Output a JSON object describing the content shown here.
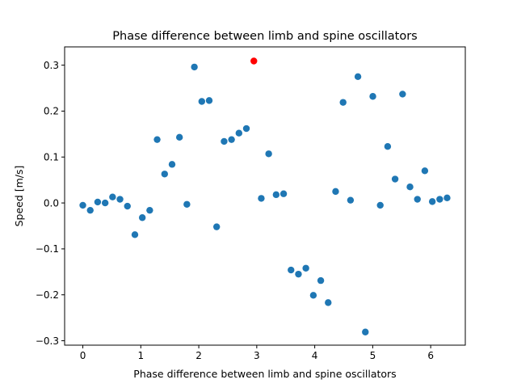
{
  "chart_data": {
    "type": "scatter",
    "title": "Phase difference between limb and spine oscillators",
    "xlabel": "Phase difference between limb and spine oscillators",
    "ylabel": "Speed [m/s]",
    "xlim": [
      -0.314,
      6.597
    ],
    "ylim": [
      -0.3096,
      0.3398
    ],
    "xticks": [
      0,
      1,
      2,
      3,
      4,
      5,
      6
    ],
    "xtick_labels": [
      "0",
      "1",
      "2",
      "3",
      "4",
      "5",
      "6"
    ],
    "yticks": [
      -0.3,
      -0.2,
      -0.1,
      0.0,
      0.1,
      0.2,
      0.3
    ],
    "ytick_labels": [
      "−0.3",
      "−0.2",
      "−0.1",
      "0.0",
      "0.1",
      "0.2",
      "0.3"
    ],
    "grid": false,
    "series": [
      {
        "color": "#1f77b4",
        "points": [
          {
            "x": 0.0,
            "y": -0.005
          },
          {
            "x": 0.128,
            "y": -0.016
          },
          {
            "x": 0.256,
            "y": 0.002
          },
          {
            "x": 0.385,
            "y": 0.0
          },
          {
            "x": 0.513,
            "y": 0.013
          },
          {
            "x": 0.641,
            "y": 0.008
          },
          {
            "x": 0.769,
            "y": -0.007
          },
          {
            "x": 0.898,
            "y": -0.069
          },
          {
            "x": 1.026,
            "y": -0.032
          },
          {
            "x": 1.154,
            "y": -0.016
          },
          {
            "x": 1.282,
            "y": 0.138
          },
          {
            "x": 1.411,
            "y": 0.063
          },
          {
            "x": 1.539,
            "y": 0.084
          },
          {
            "x": 1.667,
            "y": 0.143
          },
          {
            "x": 1.795,
            "y": -0.003
          },
          {
            "x": 1.924,
            "y": 0.296
          },
          {
            "x": 2.052,
            "y": 0.221
          },
          {
            "x": 2.18,
            "y": 0.223
          },
          {
            "x": 2.308,
            "y": -0.052
          },
          {
            "x": 2.437,
            "y": 0.134
          },
          {
            "x": 2.565,
            "y": 0.138
          },
          {
            "x": 2.693,
            "y": 0.152
          },
          {
            "x": 2.821,
            "y": 0.162
          },
          {
            "x": 3.078,
            "y": 0.01
          },
          {
            "x": 3.206,
            "y": 0.107
          },
          {
            "x": 3.334,
            "y": 0.018
          },
          {
            "x": 3.463,
            "y": 0.02
          },
          {
            "x": 3.591,
            "y": -0.146
          },
          {
            "x": 3.719,
            "y": -0.155
          },
          {
            "x": 3.847,
            "y": -0.142
          },
          {
            "x": 3.976,
            "y": -0.201
          },
          {
            "x": 4.104,
            "y": -0.169
          },
          {
            "x": 4.232,
            "y": -0.217
          },
          {
            "x": 4.36,
            "y": 0.025
          },
          {
            "x": 4.489,
            "y": 0.219
          },
          {
            "x": 4.617,
            "y": 0.006
          },
          {
            "x": 4.745,
            "y": 0.275
          },
          {
            "x": 4.873,
            "y": -0.281
          },
          {
            "x": 5.002,
            "y": 0.232
          },
          {
            "x": 5.13,
            "y": -0.005
          },
          {
            "x": 5.258,
            "y": 0.123
          },
          {
            "x": 5.386,
            "y": 0.052
          },
          {
            "x": 5.515,
            "y": 0.237
          },
          {
            "x": 5.643,
            "y": 0.035
          },
          {
            "x": 5.771,
            "y": 0.008
          },
          {
            "x": 5.899,
            "y": 0.07
          },
          {
            "x": 6.028,
            "y": 0.003
          },
          {
            "x": 6.156,
            "y": 0.008
          },
          {
            "x": 6.283,
            "y": 0.011
          }
        ]
      },
      {
        "color": "#ff0000",
        "points": [
          {
            "x": 2.95,
            "y": 0.309
          }
        ]
      }
    ]
  }
}
